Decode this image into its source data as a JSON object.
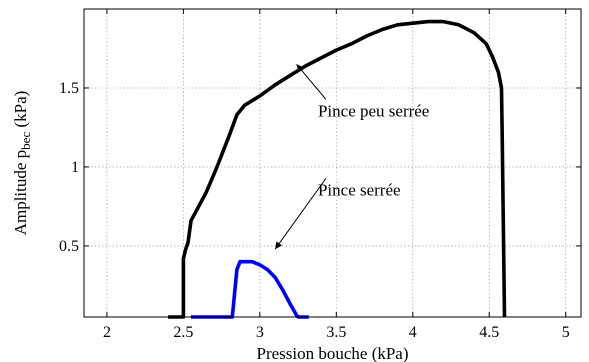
{
  "chart_data": {
    "type": "line",
    "title": "",
    "xlabel": "Pression bouche (kPa)",
    "ylabel_main": "Amplitude p",
    "ylabel_sub": "bec",
    "ylabel_tail": " (kPa)",
    "xlim": [
      1.85,
      5.1
    ],
    "ylim": [
      0.05,
      2.0
    ],
    "xticks": [
      2,
      2.5,
      3,
      3.5,
      4,
      4.5,
      5
    ],
    "xtick_labels": [
      "2",
      "2.5",
      "3",
      "3.5",
      "4",
      "4.5",
      "5"
    ],
    "yticks": [
      0.5,
      1,
      1.5
    ],
    "ytick_labels": [
      "0.5",
      "1",
      "1.5"
    ],
    "grid": true,
    "series": [
      {
        "color": "#000000",
        "points": [
          [
            2.4,
            0.05
          ],
          [
            2.5,
            0.05
          ],
          [
            2.5,
            0.42
          ],
          [
            2.515,
            0.48
          ],
          [
            2.53,
            0.52
          ],
          [
            2.55,
            0.66
          ],
          [
            2.6,
            0.75
          ],
          [
            2.65,
            0.84
          ],
          [
            2.72,
            1.0
          ],
          [
            2.8,
            1.2
          ],
          [
            2.85,
            1.33
          ],
          [
            2.9,
            1.39
          ],
          [
            3.0,
            1.45
          ],
          [
            3.1,
            1.52
          ],
          [
            3.2,
            1.58
          ],
          [
            3.3,
            1.64
          ],
          [
            3.4,
            1.69
          ],
          [
            3.5,
            1.74
          ],
          [
            3.6,
            1.78
          ],
          [
            3.7,
            1.83
          ],
          [
            3.8,
            1.87
          ],
          [
            3.9,
            1.9
          ],
          [
            4.0,
            1.91
          ],
          [
            4.1,
            1.92
          ],
          [
            4.2,
            1.92
          ],
          [
            4.3,
            1.9
          ],
          [
            4.4,
            1.85
          ],
          [
            4.48,
            1.78
          ],
          [
            4.52,
            1.7
          ],
          [
            4.56,
            1.6
          ],
          [
            4.58,
            1.5
          ],
          [
            4.585,
            1.2
          ],
          [
            4.59,
            0.8
          ],
          [
            4.595,
            0.4
          ],
          [
            4.6,
            0.05
          ]
        ]
      },
      {
        "color": "#0000ff",
        "points": [
          [
            2.55,
            0.05
          ],
          [
            2.82,
            0.05
          ],
          [
            2.85,
            0.35
          ],
          [
            2.87,
            0.4
          ],
          [
            2.95,
            0.4
          ],
          [
            3.0,
            0.38
          ],
          [
            3.05,
            0.35
          ],
          [
            3.1,
            0.3
          ],
          [
            3.15,
            0.22
          ],
          [
            3.2,
            0.13
          ],
          [
            3.24,
            0.06
          ],
          [
            3.25,
            0.05
          ],
          [
            3.32,
            0.05
          ]
        ]
      }
    ],
    "annotations": [
      {
        "text": "Pince peu serrée",
        "text_at": [
          3.38,
          1.32
        ],
        "arrow_to": [
          3.24,
          1.65
        ]
      },
      {
        "text": "Pince serrée",
        "text_at": [
          3.38,
          0.82
        ],
        "arrow_to": [
          3.1,
          0.48
        ]
      }
    ]
  }
}
